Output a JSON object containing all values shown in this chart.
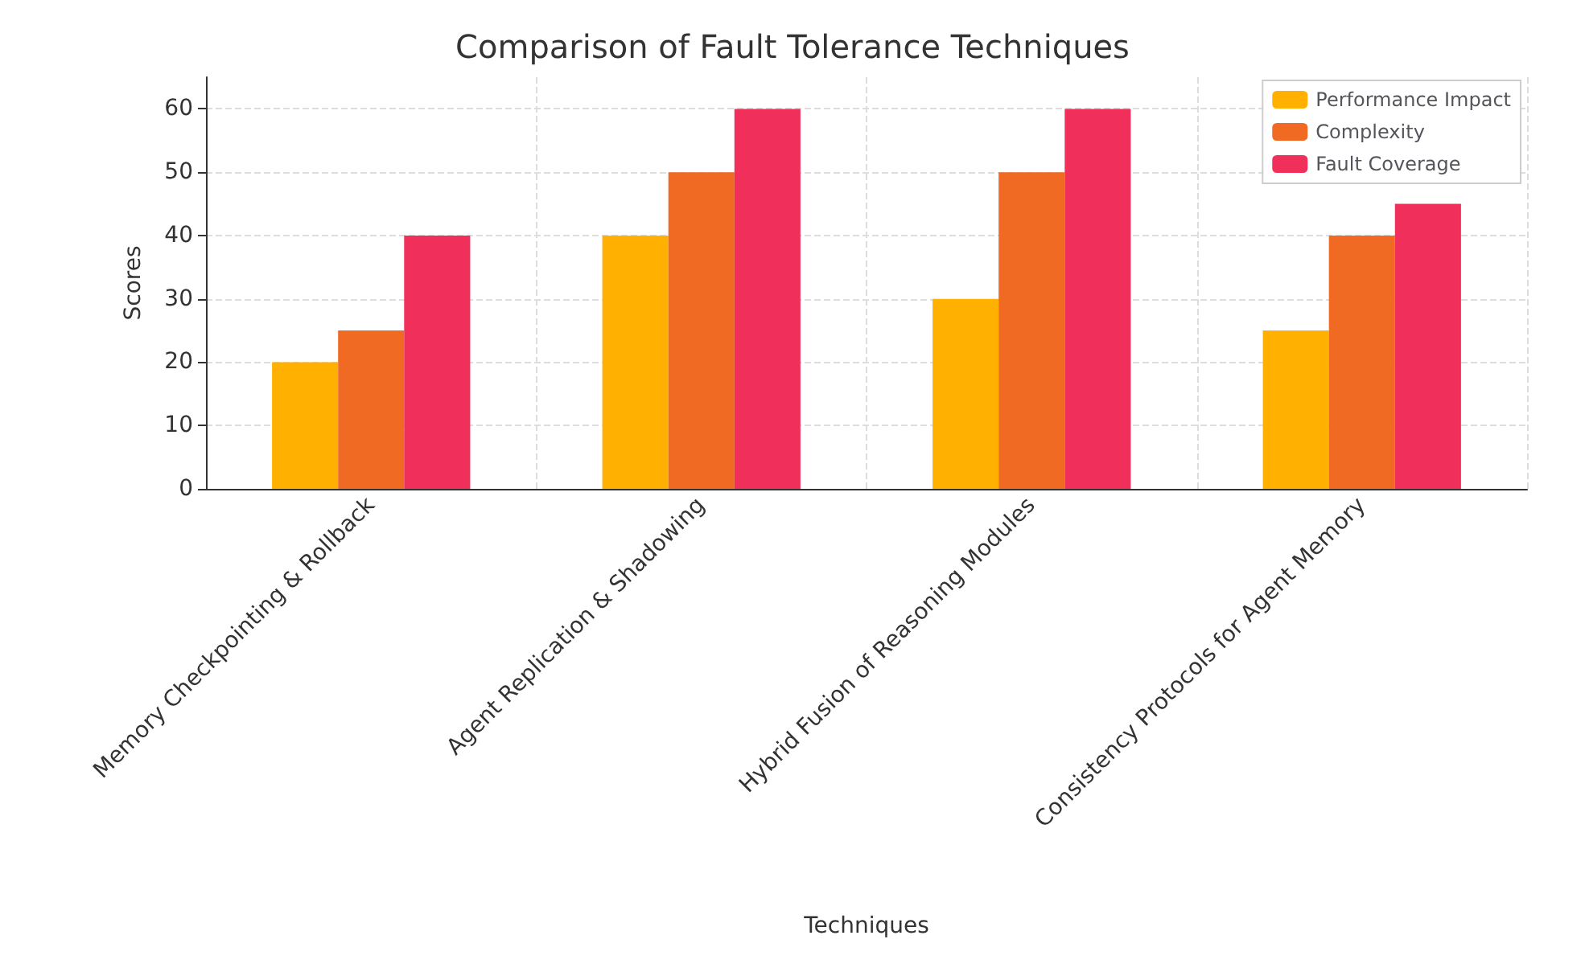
{
  "chart_data": {
    "type": "bar",
    "title": "Comparison of Fault Tolerance Techniques",
    "xlabel": "Techniques",
    "ylabel": "Scores",
    "categories": [
      "Memory Checkpointing & Rollback",
      "Agent Replication & Shadowing",
      "Hybrid Fusion of Reasoning Modules",
      "Consistency Protocols for Agent Memory"
    ],
    "series": [
      {
        "name": "Performance Impact",
        "color": "#ffb000",
        "values": [
          20,
          40,
          30,
          25
        ]
      },
      {
        "name": "Complexity",
        "color": "#f06a24",
        "values": [
          25,
          50,
          50,
          40
        ]
      },
      {
        "name": "Fault Coverage",
        "color": "#f0305a",
        "values": [
          40,
          60,
          60,
          45
        ]
      }
    ],
    "ylim": [
      0,
      65
    ],
    "yticks": [
      0,
      10,
      20,
      30,
      40,
      50,
      60
    ],
    "grid": true,
    "legend": "top right"
  }
}
